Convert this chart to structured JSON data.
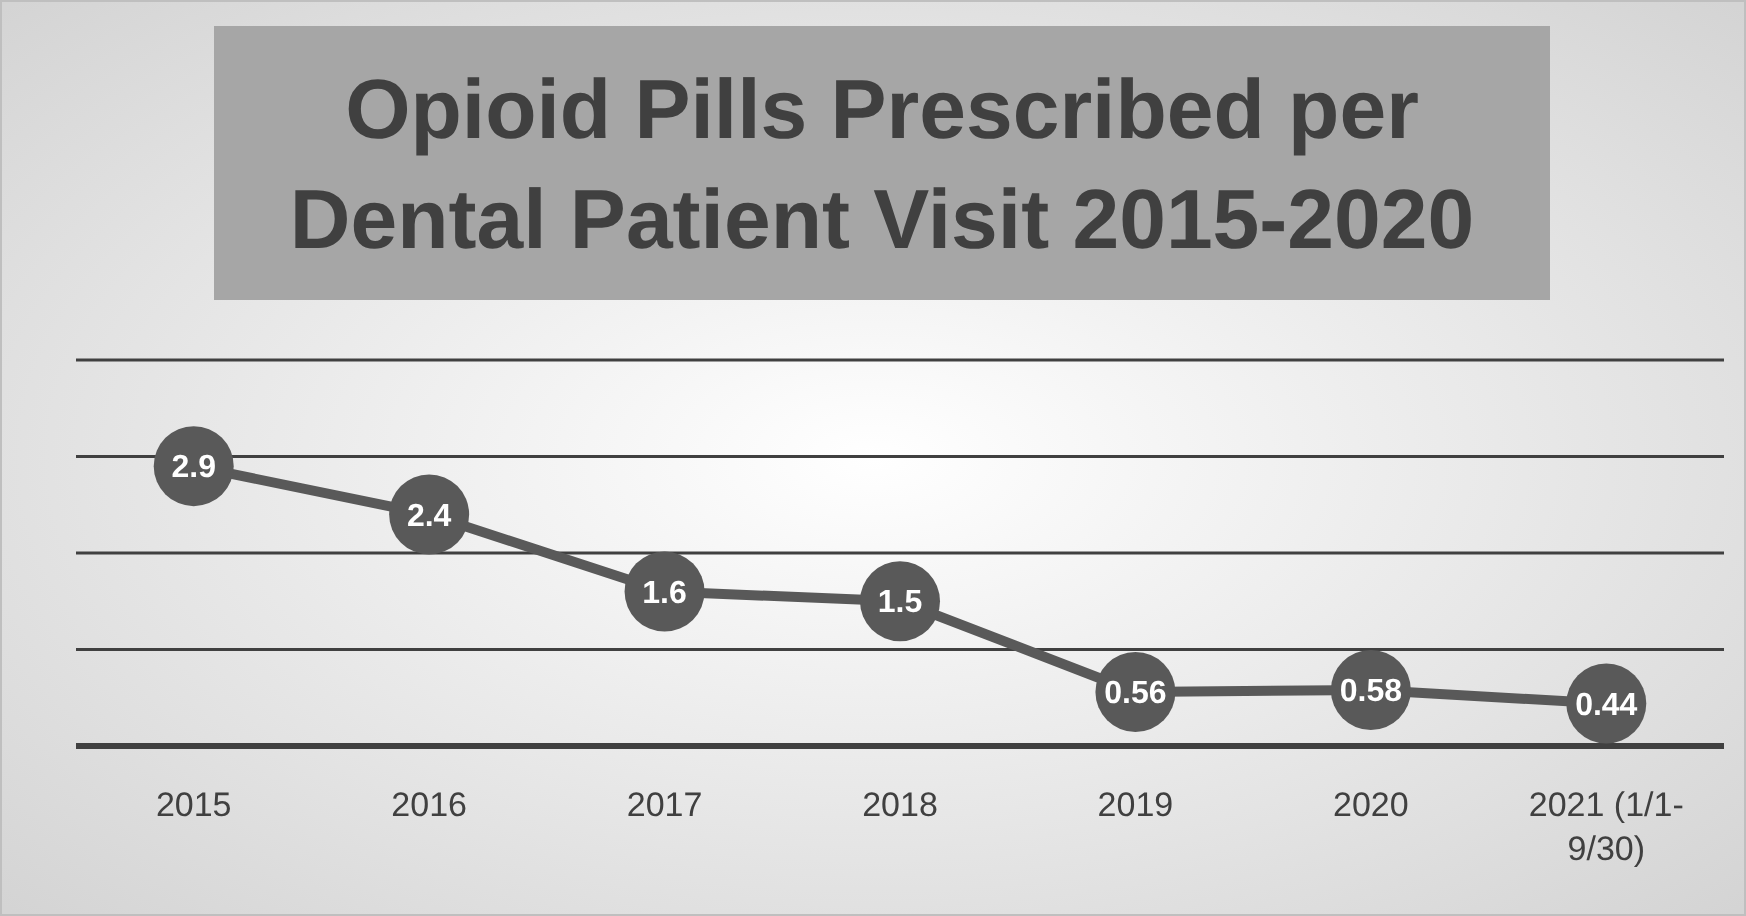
{
  "chart_data": {
    "type": "line",
    "title": "Opioid Pills Prescribed per Dental Patient Visit 2015-2020",
    "categories": [
      "2015",
      "2016",
      "2017",
      "2018",
      "2019",
      "2020",
      "2021 (1/1-9/30)"
    ],
    "values": [
      2.9,
      2.4,
      1.6,
      1.5,
      0.56,
      0.58,
      0.44
    ],
    "color": "#595959",
    "marker": "circle",
    "line_style": "solid",
    "data_labels": true,
    "ylim": [
      0,
      4
    ],
    "yticks": [
      {
        "value": 0,
        "label": null
      },
      {
        "value": 1,
        "label": null
      },
      {
        "value": 2,
        "label": null
      },
      {
        "value": 3,
        "label": null
      },
      {
        "value": 4,
        "label": null
      }
    ],
    "tick_labels": "x",
    "grid": "y"
  }
}
